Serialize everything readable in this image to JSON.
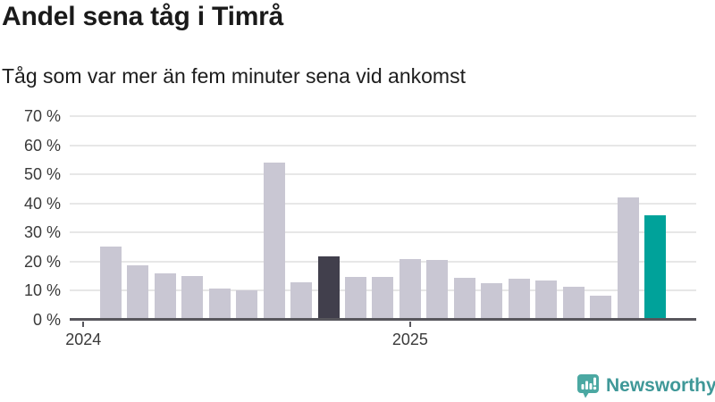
{
  "title": "Andel sena tåg i Timrå",
  "subtitle": "Tåg som var mer än fem minuter sena vid ankomst",
  "chart_data": {
    "type": "bar",
    "title": "Andel sena tåg i Timrå",
    "subtitle": "Tåg som var mer än fem minuter sena vid ankomst",
    "unit": "%",
    "ylim": [
      0,
      70
    ],
    "y_tick_step": 10,
    "y_tick_suffix": " %",
    "y_tick_labels": [
      "0 %",
      "10 %",
      "20 %",
      "30 %",
      "40 %",
      "50 %",
      "60 %",
      "70 %"
    ],
    "grid": true,
    "legend": "none",
    "values": [
      25.3,
      18.6,
      16.1,
      15.1,
      10.7,
      10.1,
      53.9,
      12.8,
      21.7,
      14.8,
      14.8,
      21.0,
      20.7,
      14.3,
      12.5,
      14.0,
      13.4,
      11.4,
      8.2,
      42.2,
      35.8
    ],
    "highlight_previous_index": 8,
    "highlight_current_index": 20,
    "x_ticks": [
      {
        "label": "2024",
        "bar_index": -1
      },
      {
        "label": "2025",
        "bar_index": 11
      }
    ],
    "colors": {
      "bar_default": "#c9c7d3",
      "bar_highlight_previous": "#413f4c",
      "bar_highlight_current": "#00a29a",
      "gridline": "#e7e7e7",
      "axis": "#57565c",
      "tick_text": "#3a3a3a"
    }
  },
  "branding": {
    "logo_text": "Newsworthy",
    "logo_text_color": "#3f9898",
    "logo_icon_color": "#4ba8a2"
  }
}
